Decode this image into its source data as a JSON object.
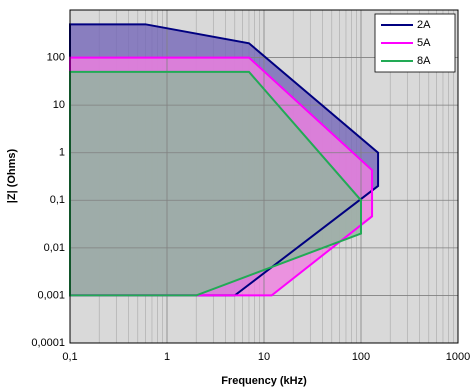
{
  "chart_data": {
    "type": "polygon",
    "x_label": "Frequency (kHz)",
    "y_label": "|Z| (Ohms)",
    "xlog": true,
    "ylog": true,
    "grid": true,
    "minor_grid_x": true,
    "legend": "top-right",
    "xlim": [
      0.1,
      1000
    ],
    "ylim": [
      0.0001,
      1000
    ],
    "xticks": [
      {
        "value": 0.1,
        "label": "0,1"
      },
      1,
      10,
      100,
      1000
    ],
    "yticks": [
      {
        "value": 0.0001,
        "label": "0,0001"
      },
      {
        "value": 0.001,
        "label": "0,001"
      },
      {
        "value": 0.01,
        "label": "0,01"
      },
      {
        "value": 0.1,
        "label": "0,1"
      },
      1,
      10,
      100
    ],
    "series": [
      {
        "name": "2A",
        "color": "#000080",
        "fill": "#7466b8",
        "x": [
          0.1,
          0.6,
          7,
          150,
          150,
          5,
          0.1
        ],
        "y": [
          500,
          500,
          200,
          1,
          0.2,
          0.001,
          0.001
        ]
      },
      {
        "name": "5A",
        "color": "#ff00ff",
        "fill": "#ef7fe0",
        "x": [
          0.1,
          7,
          130,
          130,
          12,
          0.1
        ],
        "y": [
          100,
          100,
          0.43,
          0.046,
          0.001,
          0.001
        ]
      },
      {
        "name": "8A",
        "color": "#22aa55",
        "fill": "#8fb89c",
        "x": [
          0.1,
          7,
          100,
          100,
          2,
          0.1
        ],
        "y": [
          50,
          50,
          0.1,
          0.02,
          0.001,
          0.001
        ]
      }
    ]
  }
}
